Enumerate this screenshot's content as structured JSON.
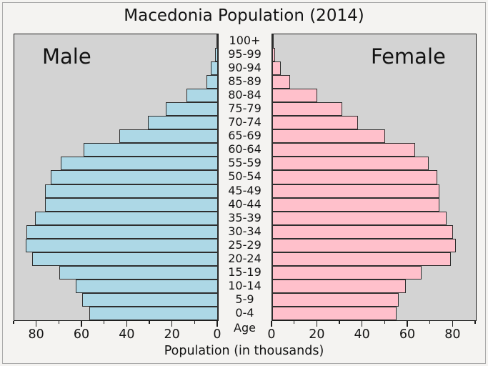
{
  "title": "Macedonia Population (2014)",
  "xlabel": "Population (in thousands)",
  "age_axis_label": "Age",
  "panel_labels": {
    "male": "Male",
    "female": "Female"
  },
  "colors": {
    "male_bar": "#add8e6",
    "female_bar": "#ffc0cb",
    "bar_edge": "#2e2e2e",
    "panel_background": "#d3d3d3",
    "figure_background": "#f4f3f1",
    "axis_spine": "#1c1c1c"
  },
  "chart_data": {
    "type": "bar",
    "subtype": "population-pyramid",
    "title": "Macedonia Population (2014)",
    "xlabel": "Population (in thousands)",
    "center_axis_label": "Age",
    "categories": [
      "100+",
      "95-99",
      "90-94",
      "85-89",
      "80-84",
      "75-79",
      "70-74",
      "65-69",
      "60-64",
      "55-59",
      "50-54",
      "45-49",
      "40-44",
      "35-39",
      "30-34",
      "25-29",
      "20-24",
      "15-19",
      "10-14",
      "5-9",
      "0-4"
    ],
    "series": [
      {
        "name": "Male",
        "side": "left",
        "values": [
          0.2,
          1.2,
          3.1,
          5.2,
          14,
          23,
          31,
          43.5,
          59.5,
          69.5,
          74,
          76.5,
          76.5,
          81,
          84.5,
          85,
          82,
          70,
          63,
          60,
          57
        ]
      },
      {
        "name": "Female",
        "side": "right",
        "values": [
          0.3,
          1.3,
          3.7,
          8,
          20,
          31,
          38,
          50,
          63,
          69,
          73,
          74,
          74,
          77,
          80,
          81,
          79,
          66,
          59,
          56,
          55
        ]
      }
    ],
    "xlim": [
      0,
      90
    ],
    "xticks_major": [
      0,
      20,
      40,
      60,
      80
    ],
    "xticks_minor_step": 10,
    "grid": false,
    "legend_position": "none"
  }
}
